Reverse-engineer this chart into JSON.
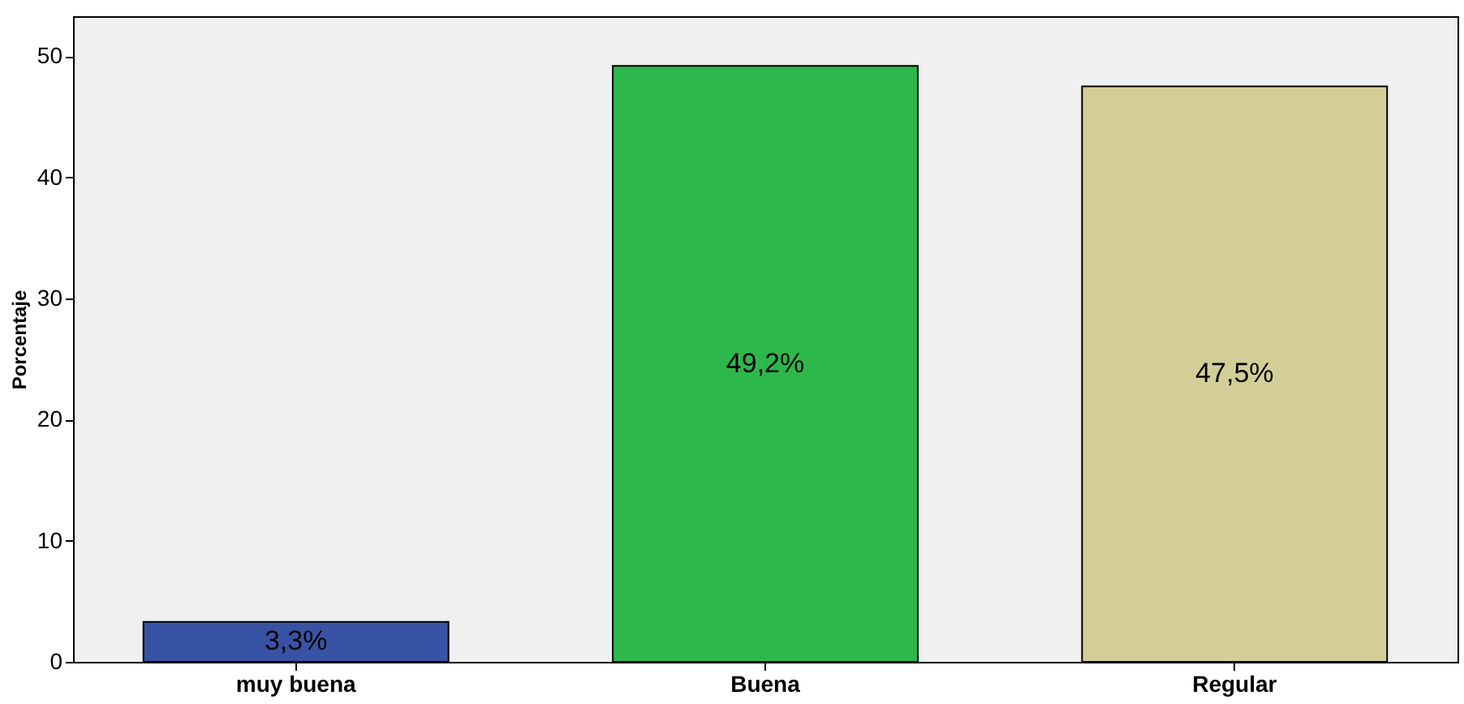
{
  "chart_data": {
    "type": "bar",
    "ylabel": "Porcentaje",
    "categories": [
      "muy buena",
      "Buena",
      "Regular"
    ],
    "values": [
      3.3,
      49.2,
      47.5
    ],
    "colors": [
      "#3953a4",
      "#2db84b",
      "#d3ce97"
    ],
    "value_labels": [
      "3,3%",
      "49,2%",
      "47,5%"
    ],
    "ylim": [
      0,
      53.3
    ],
    "yticks": [
      0,
      10,
      20,
      30,
      40,
      50
    ],
    "grid": false
  }
}
